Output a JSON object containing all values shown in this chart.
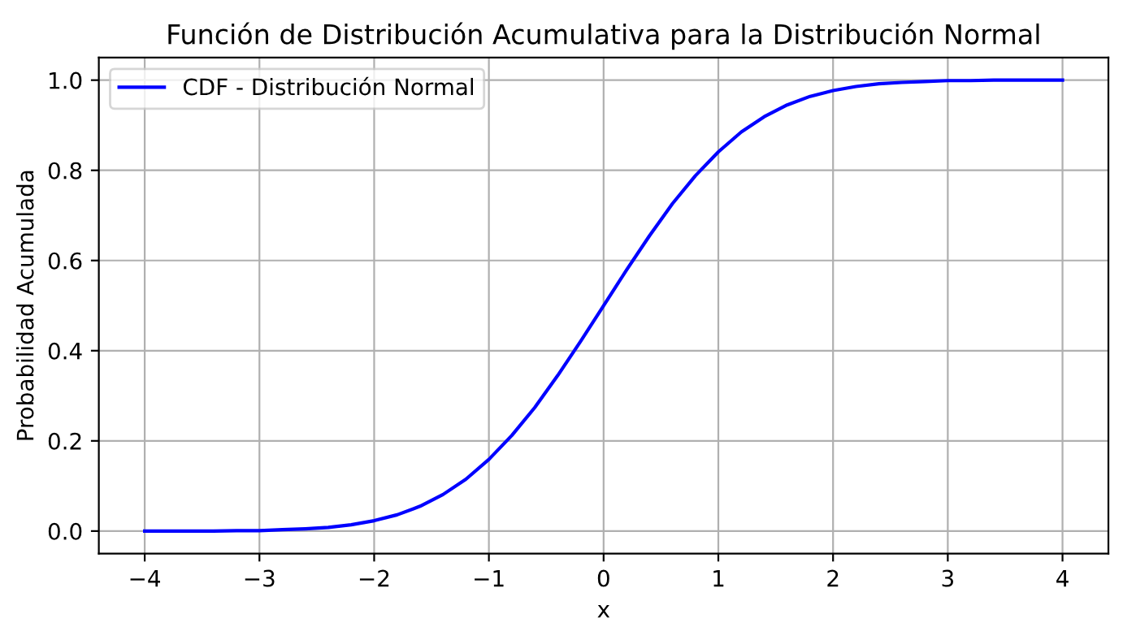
{
  "chart_data": {
    "type": "line",
    "title": "Función de Distribución Acumulativa para la Distribución Normal",
    "xlabel": "x",
    "ylabel": "Probabilidad Acumulada",
    "x": [
      -4.0,
      -3.8,
      -3.6,
      -3.4,
      -3.2,
      -3.0,
      -2.8,
      -2.6,
      -2.4,
      -2.2,
      -2.0,
      -1.8,
      -1.6,
      -1.4,
      -1.2,
      -1.0,
      -0.8,
      -0.6,
      -0.4,
      -0.2,
      0.0,
      0.2,
      0.4,
      0.6,
      0.8,
      1.0,
      1.2,
      1.4,
      1.6,
      1.8,
      2.0,
      2.2,
      2.4,
      2.6,
      2.8,
      3.0,
      3.2,
      3.4,
      3.6,
      3.8,
      4.0
    ],
    "series": [
      {
        "name": "CDF - Distribución Normal",
        "color": "#0000ff",
        "values": [
          0.0,
          0.0,
          0.0,
          0.0,
          0.001,
          0.001,
          0.003,
          0.005,
          0.008,
          0.014,
          0.023,
          0.036,
          0.055,
          0.081,
          0.115,
          0.159,
          0.212,
          0.274,
          0.345,
          0.421,
          0.5,
          0.579,
          0.655,
          0.726,
          0.788,
          0.841,
          0.885,
          0.919,
          0.945,
          0.964,
          0.977,
          0.986,
          0.992,
          0.995,
          0.997,
          0.999,
          0.999,
          1.0,
          1.0,
          1.0,
          1.0
        ]
      }
    ],
    "xlim": [
      -4.4,
      4.4
    ],
    "ylim": [
      -0.05,
      1.05
    ],
    "xticks": [
      {
        "value": -4,
        "label": "−4"
      },
      {
        "value": -3,
        "label": "−3"
      },
      {
        "value": -2,
        "label": "−2"
      },
      {
        "value": -1,
        "label": "−1"
      },
      0,
      1,
      2,
      3,
      4
    ],
    "yticks": [
      {
        "value": 0,
        "label": "0.0"
      },
      {
        "value": 0.2,
        "label": "0.2"
      },
      {
        "value": 0.4,
        "label": "0.4"
      },
      {
        "value": 0.6,
        "label": "0.6"
      },
      {
        "value": 0.8,
        "label": "0.8"
      },
      {
        "value": 1,
        "label": "1.0"
      }
    ],
    "grid": true,
    "legend": "top left",
    "marker": "none",
    "line_style": "solid"
  }
}
